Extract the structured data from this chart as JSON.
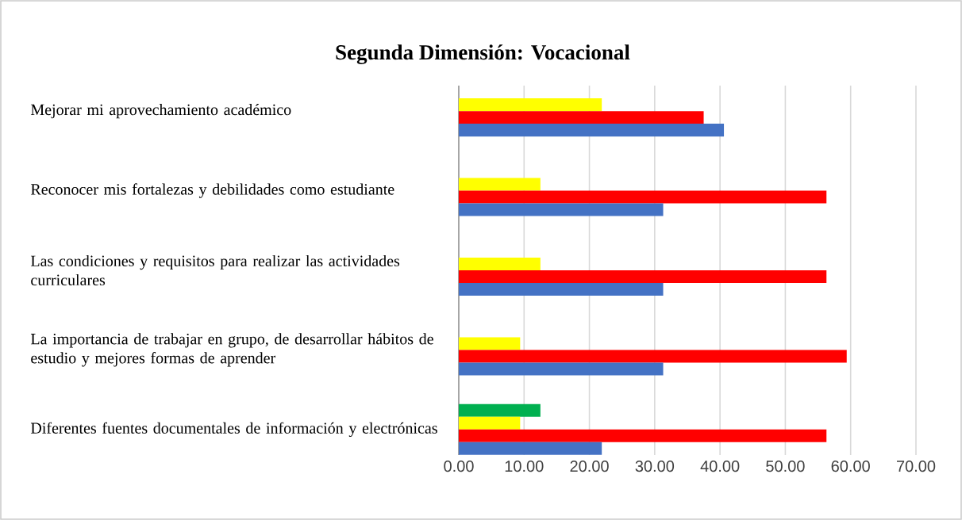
{
  "chart_data": {
    "type": "bar",
    "orientation": "horizontal",
    "title": "Segunda  Dimensión: Vocacional",
    "categories": [
      "Mejorar mi aprovechamiento académico",
      "Reconocer mis fortalezas y debilidades como estudiante",
      "Las condiciones y requisitos para realizar las actividades curriculares",
      "La importancia de trabajar en grupo, de desarrollar hábitos de estudio y mejores formas de aprender",
      "Diferentes fuentes documentales de información y electrónicas"
    ],
    "series": [
      {
        "color": "#00b050",
        "values": [
          null,
          null,
          null,
          null,
          12.5
        ]
      },
      {
        "color": "#ffff00",
        "values": [
          21.9,
          12.5,
          12.5,
          9.4,
          9.4
        ]
      },
      {
        "color": "#ff0000",
        "values": [
          37.5,
          56.3,
          56.3,
          59.4,
          56.3
        ]
      },
      {
        "color": "#4472c4",
        "values": [
          40.6,
          31.3,
          31.3,
          31.3,
          21.9
        ]
      }
    ],
    "xlim": [
      0,
      70
    ],
    "xticks": [
      {
        "value": 0,
        "label": "0.00"
      },
      {
        "value": 10,
        "label": "10.00"
      },
      {
        "value": 20,
        "label": "20.00"
      },
      {
        "value": 30,
        "label": "30.00"
      },
      {
        "value": 40,
        "label": "40.00"
      },
      {
        "value": 50,
        "label": "50.00"
      },
      {
        "value": 60,
        "label": "60.00"
      },
      {
        "value": 70,
        "label": "70.00"
      }
    ],
    "grid": "x"
  }
}
